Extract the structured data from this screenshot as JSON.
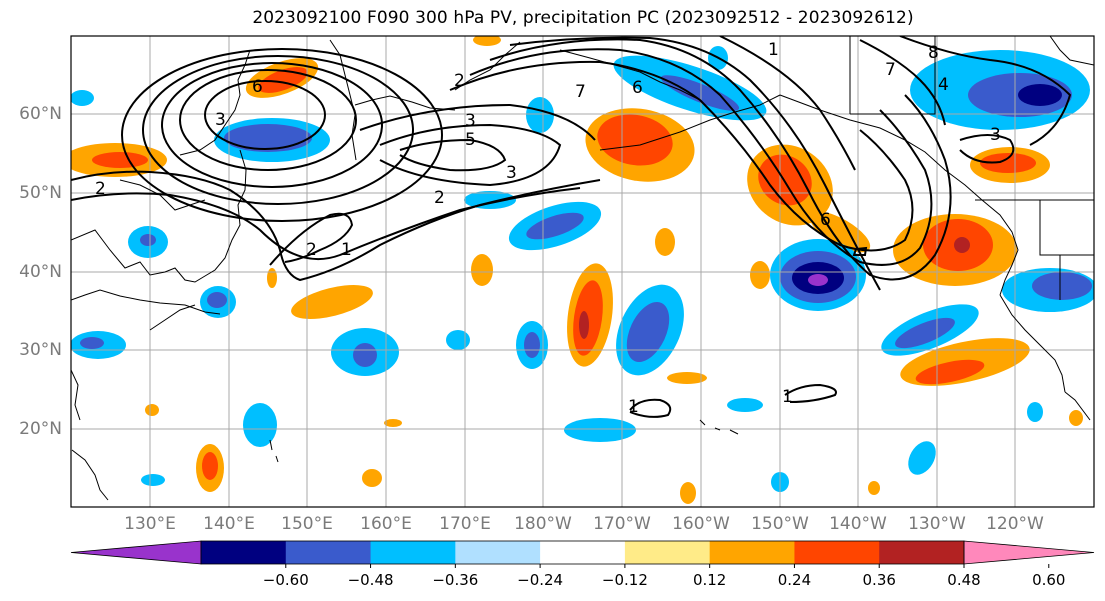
{
  "title": "2023092100 F090 300 hPa PV, precipitation PC (2023092512 - 2023092612)",
  "map": {
    "lat_labels": [
      "60°N",
      "50°N",
      "40°N",
      "30°N",
      "20°N"
    ],
    "lon_labels": [
      "130°E",
      "140°E",
      "150°E",
      "160°E",
      "170°E",
      "180°W",
      "170°W",
      "160°W",
      "150°W",
      "140°W",
      "130°W",
      "120°W"
    ],
    "contour_labels": [
      "2",
      "3",
      "5",
      "3",
      "2",
      "1",
      "2",
      "7",
      "6",
      "8",
      "4",
      "3",
      "7",
      "6",
      "1",
      "1",
      "6",
      "3",
      "2",
      "1"
    ]
  },
  "colorbar": {
    "colors": [
      "#9933cc",
      "#000080",
      "#3a5bcc",
      "#00bfff",
      "#b0e0ff",
      "#ffffff",
      "#ffeb88",
      "#ffa500",
      "#ff4500",
      "#b22222",
      "#ff88bb"
    ],
    "tick_labels": [
      "−0.60",
      "−0.48",
      "−0.36",
      "−0.24",
      "−0.12",
      "0.12",
      "0.24",
      "0.36",
      "0.48",
      "0.60"
    ]
  }
}
